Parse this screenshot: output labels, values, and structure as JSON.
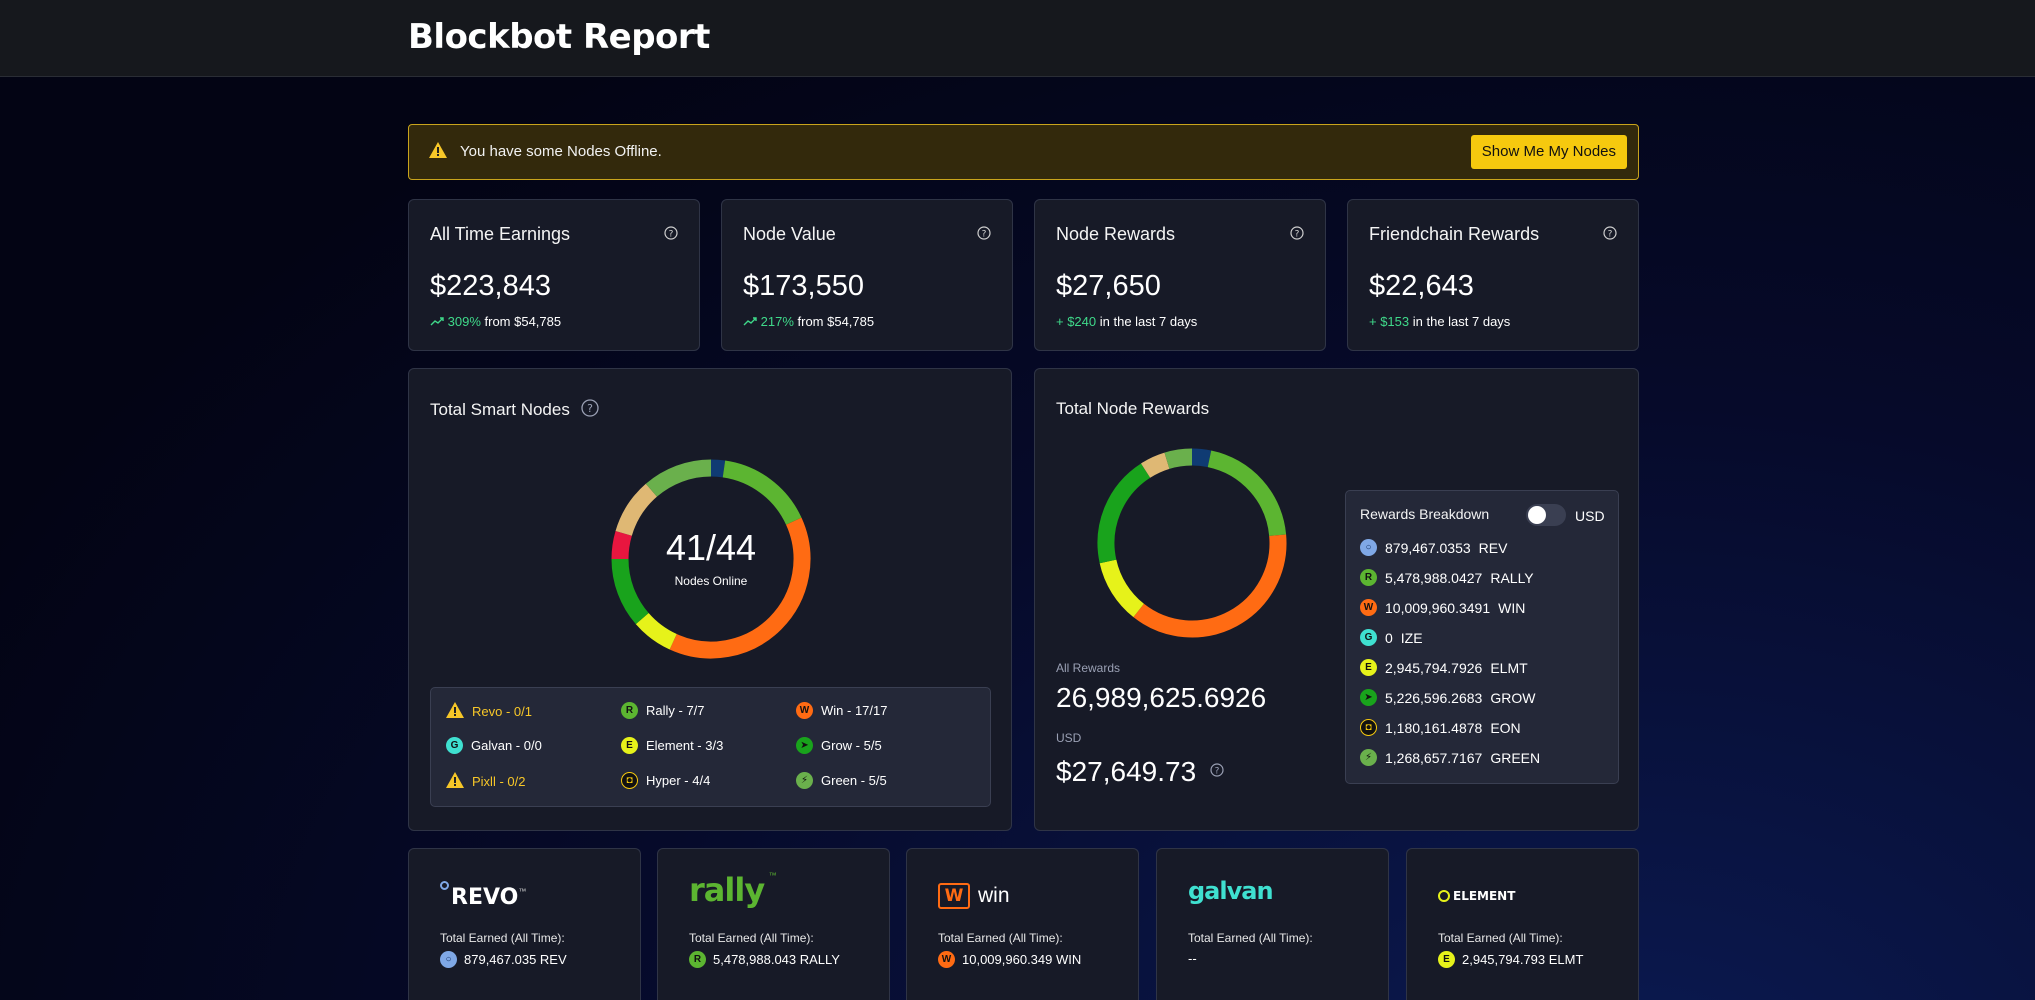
{
  "header": {
    "brand": "Blockbot Report"
  },
  "alert": {
    "message": "You have some Nodes Offline.",
    "button_label": "Show Me My Nodes"
  },
  "stats": [
    {
      "title": "All Time Earnings",
      "value": "$223,843",
      "delta": "309%",
      "suffix": "from $54,785"
    },
    {
      "title": "Node Value",
      "value": "$173,550",
      "delta": "217%",
      "suffix": "from $54,785"
    },
    {
      "title": "Node Rewards",
      "value": "$27,650",
      "delta": "+ $240",
      "suffix": "in the last 7 days"
    },
    {
      "title": "Friendchain Rewards",
      "value": "$22,643",
      "delta": "+ $153",
      "suffix": "in the last 7 days"
    }
  ],
  "smart_nodes": {
    "title": "Total Smart Nodes",
    "center_value": "41/44",
    "center_label": "Nodes Online",
    "legend": [
      {
        "label": "Revo - 0/1",
        "coin": "REV",
        "warning": true
      },
      {
        "label": "Rally - 7/7",
        "coin": "RALLY",
        "warning": false
      },
      {
        "label": "Win - 17/17",
        "coin": "WIN",
        "warning": false
      },
      {
        "label": "Galvan - 0/0",
        "coin": "IZE",
        "warning": false
      },
      {
        "label": "Element - 3/3",
        "coin": "ELMT",
        "warning": false
      },
      {
        "label": "Grow - 5/5",
        "coin": "GROW",
        "warning": false
      },
      {
        "label": "Pixll - 0/2",
        "coin": "PIX",
        "warning": true
      },
      {
        "label": "Hyper - 4/4",
        "coin": "EON",
        "warning": false
      },
      {
        "label": "Green - 5/5",
        "coin": "GREEN",
        "warning": false
      }
    ]
  },
  "node_rewards": {
    "title": "Total Node Rewards",
    "all_rewards_label": "All Rewards",
    "all_rewards_value": "26,989,625.6926",
    "usd_label": "USD",
    "usd_value": "$27,649.73",
    "breakdown_title": "Rewards Breakdown",
    "toggle_label": "USD",
    "breakdown": [
      {
        "amount": "879,467.0353",
        "symbol": "REV"
      },
      {
        "amount": "5,478,988.0427",
        "symbol": "RALLY"
      },
      {
        "amount": "10,009,960.3491",
        "symbol": "WIN"
      },
      {
        "amount": "0",
        "symbol": "IZE"
      },
      {
        "amount": "2,945,794.7926",
        "symbol": "ELMT"
      },
      {
        "amount": "5,226,596.2683",
        "symbol": "GROW"
      },
      {
        "amount": "1,180,161.4878",
        "symbol": "EON"
      },
      {
        "amount": "1,268,657.7167",
        "symbol": "GREEN"
      }
    ]
  },
  "coin_cards": [
    {
      "brand": "REVO",
      "tm": "™",
      "label": "Total Earned (All Time):",
      "amount": "879,467.035 REV"
    },
    {
      "brand": "rally",
      "tm": "™",
      "label": "Total Earned (All Time):",
      "amount": "5,478,988.043 RALLY"
    },
    {
      "brand": "win",
      "mark": "W",
      "label": "Total Earned (All Time):",
      "amount": "10,009,960.349 WIN"
    },
    {
      "brand": "galvan",
      "label": "Total Earned (All Time):",
      "amount": "--"
    },
    {
      "brand": "ELEMENT",
      "label": "Total Earned (All Time):",
      "amount": "2,945,794.793 ELMT"
    }
  ],
  "coin_glyphs": {
    "REV": "○",
    "RALLY": "R",
    "WIN": "W",
    "IZE": "G",
    "ELMT": "E",
    "GROW": "➤",
    "EON": "◘",
    "GREEN": "⚡"
  },
  "colors": {
    "REV": "#7fa8e6",
    "RALLY": "#5cb531",
    "WIN": "#ff6b13",
    "IZE": "#3fe0d0",
    "ELMT": "#e6f21a",
    "GROW": "#19a31c",
    "EON": "#111111",
    "GREEN": "#6ab04c",
    "warning": "#f7c728",
    "accent": "#f6c90e",
    "positive": "#3fd98a"
  },
  "chart_data": [
    {
      "type": "pie",
      "title": "Total Smart Nodes",
      "categories": [
        "Revo",
        "Rally",
        "Win",
        "Galvan",
        "Element",
        "Grow",
        "Pixll",
        "Hyper",
        "Green"
      ],
      "values": [
        1,
        7,
        17,
        0,
        3,
        5,
        2,
        4,
        5
      ]
    },
    {
      "type": "pie",
      "title": "Total Node Rewards",
      "categories": [
        "REV",
        "RALLY",
        "WIN",
        "IZE",
        "ELMT",
        "GROW",
        "EON",
        "GREEN"
      ],
      "values": [
        879467.0353,
        5478988.0427,
        10009960.3491,
        0,
        2945794.7926,
        5226596.2683,
        1180161.4878,
        1268657.7167
      ]
    }
  ]
}
